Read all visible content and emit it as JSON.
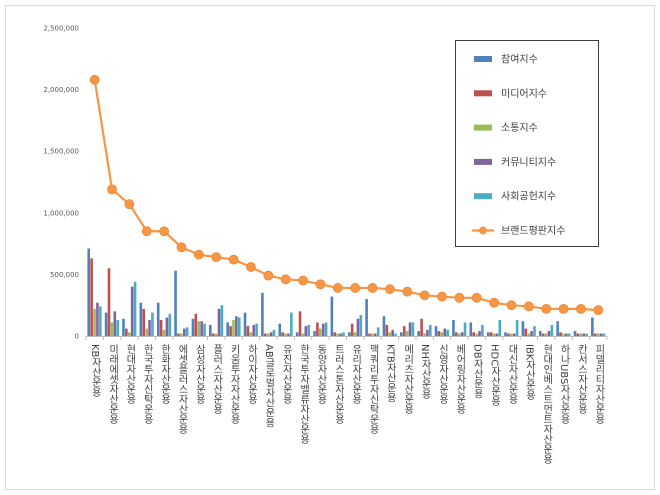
{
  "chart_data": {
    "type": "bar",
    "ylim": [
      0,
      2500000
    ],
    "yticks": [
      "0",
      "500,000",
      "1,000,000",
      "1,500,000",
      "2,000,000",
      "2,500,000"
    ],
    "ytick_values": [
      0,
      500000,
      1000000,
      1500000,
      2000000,
      2500000
    ],
    "legend_position": "top-right",
    "categories": [
      "KB자산운용",
      "미래에셋자산운용",
      "현대자산운용",
      "한국투자신탁운용",
      "한화자산운용",
      "에셋플러스자산운용",
      "삼성자산운용",
      "플러스자산운용",
      "키움투자자산운용",
      "하이자산운용",
      "AB글로벌자산운용",
      "유진자산운용",
      "한국투자밸류자산운용",
      "동양자산운용",
      "트러스톤자산운용",
      "유리자산운용",
      "맥쿼리투자신탁운용",
      "KTB자산운용",
      "메리츠자산운용",
      "NH자산운용",
      "신영자산운용",
      "베어링자산운용",
      "DB자산운용",
      "HDC자산운용",
      "대신자산운용",
      "IBK자산운용",
      "현대인베스트먼트자산운용",
      "하나UBS자산운용",
      "칸서스자산운용",
      "피델리티자산운용"
    ],
    "series": [
      {
        "name": "참여지수",
        "type": "bar",
        "color": "#4f81bd",
        "values": [
          710000,
          190000,
          140000,
          270000,
          270000,
          530000,
          140000,
          90000,
          110000,
          190000,
          350000,
          100000,
          30000,
          40000,
          320000,
          30000,
          300000,
          160000,
          30000,
          40000,
          80000,
          130000,
          110000,
          30000,
          30000,
          120000,
          40000,
          120000,
          40000,
          150000
        ]
      },
      {
        "name": "미디어지수",
        "type": "bar",
        "color": "#c0504d",
        "values": [
          630000,
          550000,
          60000,
          220000,
          130000,
          20000,
          180000,
          20000,
          80000,
          80000,
          20000,
          30000,
          200000,
          110000,
          30000,
          100000,
          20000,
          90000,
          80000,
          140000,
          40000,
          30000,
          30000,
          30000,
          20000,
          60000,
          20000,
          30000,
          20000,
          20000
        ]
      },
      {
        "name": "소통지수",
        "type": "bar",
        "color": "#9bbb59",
        "values": [
          220000,
          110000,
          30000,
          60000,
          50000,
          20000,
          120000,
          20000,
          130000,
          30000,
          20000,
          20000,
          20000,
          60000,
          20000,
          30000,
          20000,
          30000,
          40000,
          20000,
          30000,
          20000,
          20000,
          20000,
          20000,
          20000,
          20000,
          20000,
          20000,
          20000
        ]
      },
      {
        "name": "커뮤니티지수",
        "type": "bar",
        "color": "#8064a2",
        "values": [
          270000,
          200000,
          400000,
          130000,
          150000,
          60000,
          120000,
          220000,
          160000,
          90000,
          30000,
          20000,
          80000,
          100000,
          20000,
          140000,
          20000,
          50000,
          110000,
          50000,
          60000,
          30000,
          40000,
          20000,
          20000,
          40000,
          40000,
          20000,
          20000,
          20000
        ]
      },
      {
        "name": "사회공헌지수",
        "type": "bar",
        "color": "#4bacc6",
        "values": [
          240000,
          130000,
          440000,
          190000,
          180000,
          70000,
          100000,
          250000,
          150000,
          100000,
          50000,
          190000,
          90000,
          110000,
          30000,
          170000,
          70000,
          20000,
          110000,
          90000,
          50000,
          110000,
          90000,
          130000,
          130000,
          80000,
          90000,
          20000,
          20000,
          20000
        ]
      },
      {
        "name": "브랜드평판지수",
        "type": "line",
        "color": "#f79646",
        "values": [
          2080000,
          1190000,
          1070000,
          850000,
          850000,
          720000,
          660000,
          640000,
          620000,
          560000,
          490000,
          460000,
          450000,
          420000,
          390000,
          390000,
          390000,
          380000,
          360000,
          330000,
          320000,
          310000,
          310000,
          270000,
          250000,
          240000,
          220000,
          220000,
          220000,
          210000
        ]
      }
    ]
  }
}
